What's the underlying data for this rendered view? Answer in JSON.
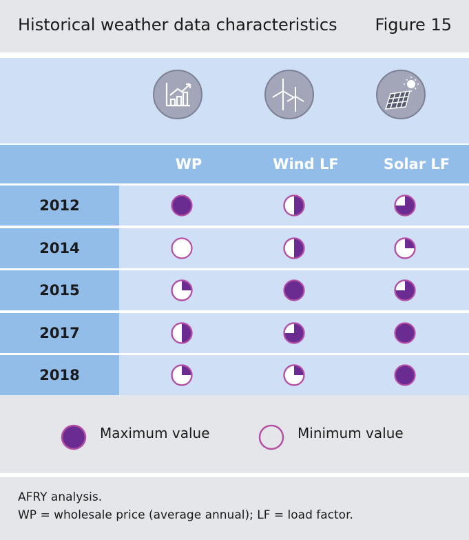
{
  "header": {
    "title": "Historical weather data characteristics",
    "figure": "Figure 15"
  },
  "chart_data": {
    "type": "table",
    "columns": [
      "WP",
      "Wind LF",
      "Solar LF"
    ],
    "column_icons": [
      "bar-chart-icon",
      "wind-turbine-icon",
      "solar-panel-icon"
    ],
    "rows": [
      {
        "year": "2012",
        "fill": [
          1.0,
          0.5,
          0.75
        ]
      },
      {
        "year": "2014",
        "fill": [
          0.0,
          0.5,
          0.25
        ]
      },
      {
        "year": "2015",
        "fill": [
          0.25,
          1.0,
          0.75
        ]
      },
      {
        "year": "2017",
        "fill": [
          0.5,
          0.75,
          1.0
        ]
      },
      {
        "year": "2018",
        "fill": [
          0.25,
          0.25,
          1.0
        ]
      }
    ]
  },
  "legend": {
    "max_label": "Maximum value",
    "min_label": "Minimum value"
  },
  "footer": {
    "source": "AFRY analysis.",
    "definition": "WP = wholesale price (average annual); LF = load factor."
  },
  "colors": {
    "fill": "#6a2c91",
    "stroke": "#b54fa6",
    "light_band": "#cfdff5",
    "dark_band": "#92bde8",
    "icon_bg": "#a2a6b8"
  }
}
